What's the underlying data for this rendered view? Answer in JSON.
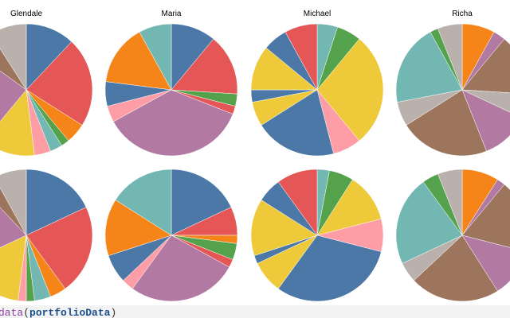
{
  "chart_data": [
    {
      "type": "pie",
      "title": "Glendale",
      "pies": [
        {
          "values": [
            12,
            22,
            5,
            2,
            3,
            4,
            13,
            24,
            6,
            9
          ],
          "colors": [
            "#4c78a8",
            "#e45756",
            "#f58518",
            "#54a24b",
            "#72b7b2",
            "#ff9da6",
            "#eeca3b",
            "#b279a2",
            "#9d755d",
            "#bab0ac"
          ]
        },
        {
          "values": [
            18,
            22,
            4,
            4,
            2,
            2,
            16,
            20,
            4,
            8
          ],
          "colors": [
            "#4c78a8",
            "#e45756",
            "#f58518",
            "#72b7b2",
            "#54a24b",
            "#ff9da6",
            "#eeca3b",
            "#b279a2",
            "#9d755d",
            "#bab0ac"
          ]
        }
      ]
    },
    {
      "type": "pie",
      "title": "Maria",
      "pies": [
        {
          "values": [
            11,
            15,
            3,
            2,
            36,
            4,
            6,
            15,
            8
          ],
          "colors": [
            "#4c78a8",
            "#e45756",
            "#54a24b",
            "#e45756",
            "#b279a2",
            "#ff9da6",
            "#4c78a8",
            "#f58518",
            "#72b7b2"
          ]
        },
        {
          "values": [
            18,
            7,
            2,
            4,
            2,
            27,
            3,
            7,
            14,
            16
          ],
          "colors": [
            "#4c78a8",
            "#e45756",
            "#f58518",
            "#54a24b",
            "#e45756",
            "#b279a2",
            "#ff9da6",
            "#4c78a8",
            "#f58518",
            "#72b7b2"
          ]
        }
      ]
    },
    {
      "type": "pie",
      "title": "Michael",
      "pies": [
        {
          "values": [
            5,
            6,
            28,
            7,
            20,
            6,
            3,
            11,
            6,
            8
          ],
          "colors": [
            "#72b7b2",
            "#54a24b",
            "#eeca3b",
            "#ff9da6",
            "#4c78a8",
            "#eeca3b",
            "#4c78a8",
            "#eeca3b",
            "#4c78a8",
            "#e45756"
          ]
        },
        {
          "values": [
            3,
            6,
            12,
            8,
            31,
            8,
            2,
            14,
            6,
            10
          ],
          "colors": [
            "#72b7b2",
            "#54a24b",
            "#eeca3b",
            "#ff9da6",
            "#4c78a8",
            "#eeca3b",
            "#4c78a8",
            "#eeca3b",
            "#4c78a8",
            "#e45756"
          ]
        }
      ]
    },
    {
      "type": "pie",
      "title": "Richa",
      "pies": [
        {
          "values": [
            8,
            3,
            15,
            6,
            12,
            22,
            6,
            20,
            2,
            6
          ],
          "colors": [
            "#f58518",
            "#b279a2",
            "#9d755d",
            "#bab0ac",
            "#b279a2",
            "#9d755d",
            "#bab0ac",
            "#72b7b2",
            "#54a24b",
            "#bab0ac"
          ]
        },
        {
          "values": [
            9,
            2,
            18,
            12,
            22,
            5,
            22,
            4,
            6
          ],
          "colors": [
            "#f58518",
            "#b279a2",
            "#9d755d",
            "#b279a2",
            "#9d755d",
            "#bab0ac",
            "#72b7b2",
            "#54a24b",
            "#bab0ac"
          ]
        }
      ]
    }
  ],
  "code": [
    "data",
    "(",
    "portfolioData",
    ")"
  ]
}
